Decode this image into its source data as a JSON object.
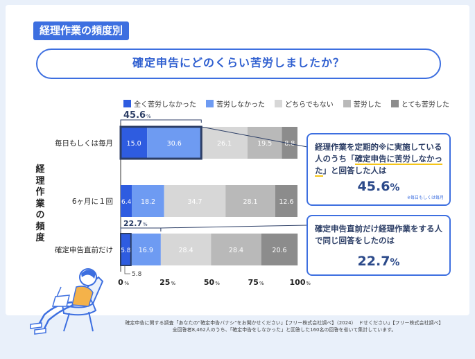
{
  "section_tag": "経理作業の頻度別",
  "question": "確定申告にどのくらい苦労しましたか？",
  "colors": {
    "accent": "#3d6fe0",
    "series": [
      "#2e5ce0",
      "#6e9bf2",
      "#d7d7d7",
      "#b9b9b9",
      "#8c8c8c"
    ]
  },
  "y_axis_label": "経理作業の頻度",
  "chart_data": {
    "type": "bar",
    "orientation": "horizontal",
    "stacked": true,
    "categories": [
      "毎日もしくは毎月",
      "6ヶ月に１回",
      "確定申告直前だけ"
    ],
    "series": [
      {
        "name": "全く苦労しなかった",
        "values": [
          15.0,
          6.4,
          5.8
        ]
      },
      {
        "name": "苦労しなかった",
        "values": [
          30.6,
          18.2,
          16.9
        ]
      },
      {
        "name": "どちらでもない",
        "values": [
          26.1,
          34.7,
          28.4
        ]
      },
      {
        "name": "苦労した",
        "values": [
          19.5,
          28.1,
          28.4
        ]
      },
      {
        "name": "とても苦労した",
        "values": [
          8.8,
          12.6,
          20.6
        ]
      }
    ],
    "highlight_totals": [
      "45.6",
      "",
      "22.7"
    ],
    "highlight_unit": "%",
    "x_ticks": [
      "0%",
      "25%",
      "50%",
      "75%",
      "100%"
    ],
    "xlim": [
      0,
      100
    ],
    "legend_position": "top"
  },
  "callout_top": {
    "text_before": "経理作業を定期的※に実施している人のうち「",
    "text_highlight": "確定申告に苦労しなかった",
    "text_after": "」と回答した人は",
    "value": "45.6",
    "unit": "%",
    "note": "※毎日もしくは毎月"
  },
  "callout_bottom": {
    "text": "確定申告直前だけ経理作業をする人で同じ回答をしたのは",
    "value": "22.7",
    "unit": "%"
  },
  "footer": {
    "line1": "確定申告に関する調査「あなたの“確定申告バナシ”をお聞かせください」【フリー株式会社調べ】（2024）　ドせください」【フリー株式会社調べ】",
    "line2": "全回答者8,462人のうち、「確定申告をしなかった」と回答した160名の回答を省いて集計しています。"
  }
}
